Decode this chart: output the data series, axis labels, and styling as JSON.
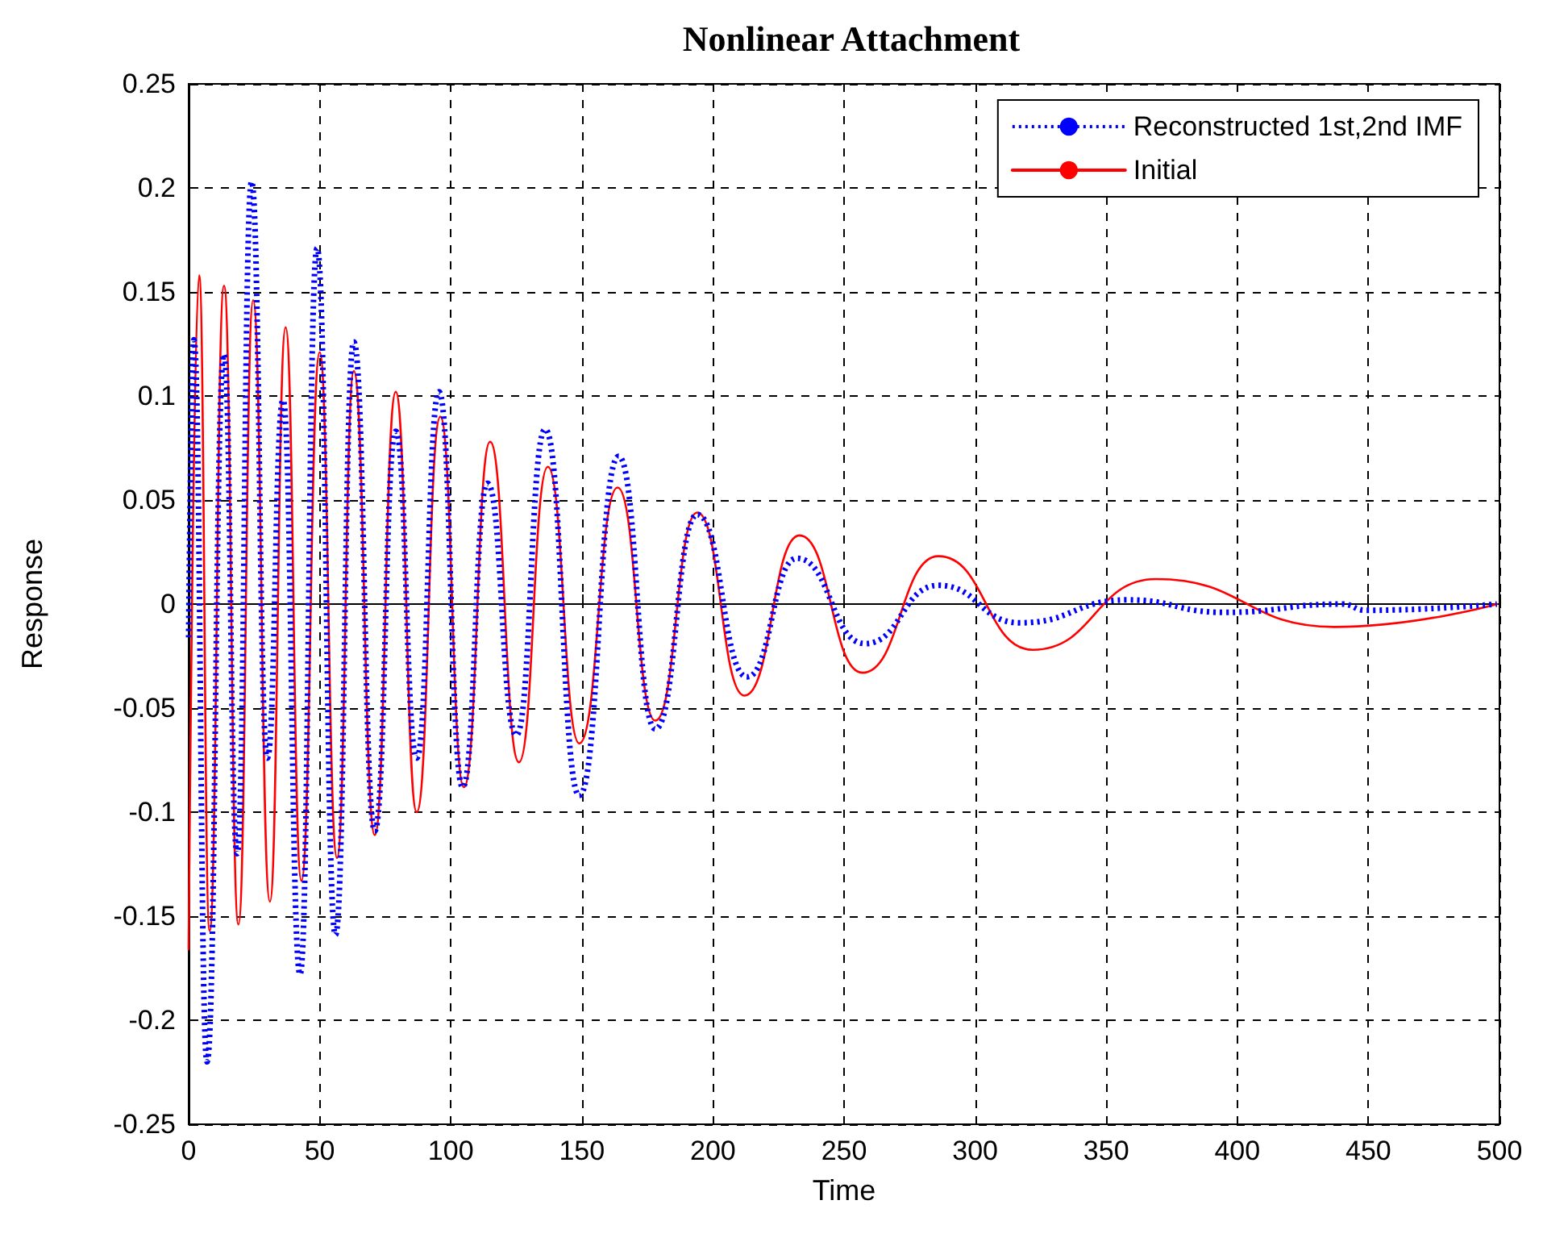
{
  "chart_data": {
    "type": "line",
    "title": "Nonlinear Attachment",
    "xlabel": "Time",
    "ylabel": "Response",
    "xlim": [
      0,
      500
    ],
    "xticks": [
      0,
      50,
      100,
      150,
      200,
      250,
      300,
      350,
      400,
      450,
      500
    ],
    "ylim": [
      -0.25,
      0.25
    ],
    "yticks": [
      -0.25,
      -0.2,
      -0.15,
      -0.1,
      -0.05,
      0,
      0.05,
      0.1,
      0.15,
      0.2,
      0.25
    ],
    "grid": true,
    "legend": "top right",
    "marker": "none",
    "series": [
      {
        "name": "Reconstructed 1st,2nd IMF",
        "color": "#0000ff",
        "line_style": "dotted",
        "x": [
          0,
          2,
          7,
          13.5,
          18.5,
          24,
          30,
          36,
          42.5,
          49,
          56,
          63,
          71,
          79,
          87,
          95.5,
          104.5,
          114,
          125,
          136,
          149,
          164,
          178,
          194,
          213,
          232,
          258,
          286,
          317,
          358,
          395,
          440,
          449,
          499
        ],
        "values": [
          -0.016,
          0.127,
          -0.22,
          0.12,
          -0.12,
          0.203,
          -0.074,
          0.098,
          -0.178,
          0.171,
          -0.159,
          0.126,
          -0.109,
          0.083,
          -0.074,
          0.102,
          -0.088,
          0.058,
          -0.063,
          0.084,
          -0.092,
          0.071,
          -0.06,
          0.043,
          -0.035,
          0.022,
          -0.019,
          0.009,
          -0.009,
          0.002,
          -0.004,
          0,
          -0.003,
          0
        ]
      },
      {
        "name": "Initial",
        "color": "#ff0000",
        "line_style": "solid",
        "x": [
          0,
          4,
          8,
          13.5,
          19,
          24.6,
          31,
          37,
          43,
          50,
          56.6,
          63,
          71,
          79,
          87,
          96,
          105,
          115,
          126,
          137,
          149,
          163.6,
          178,
          194,
          212,
          233,
          257,
          286,
          322,
          369,
          437,
          499
        ],
        "values": [
          -0.166,
          0.158,
          -0.157,
          0.153,
          -0.154,
          0.146,
          -0.143,
          0.133,
          -0.133,
          0.121,
          -0.122,
          0.112,
          -0.111,
          0.102,
          -0.1,
          0.09,
          -0.088,
          0.078,
          -0.076,
          0.066,
          -0.067,
          0.056,
          -0.056,
          0.044,
          -0.044,
          0.033,
          -0.033,
          0.023,
          -0.022,
          0.012,
          -0.011,
          0
        ]
      }
    ]
  }
}
